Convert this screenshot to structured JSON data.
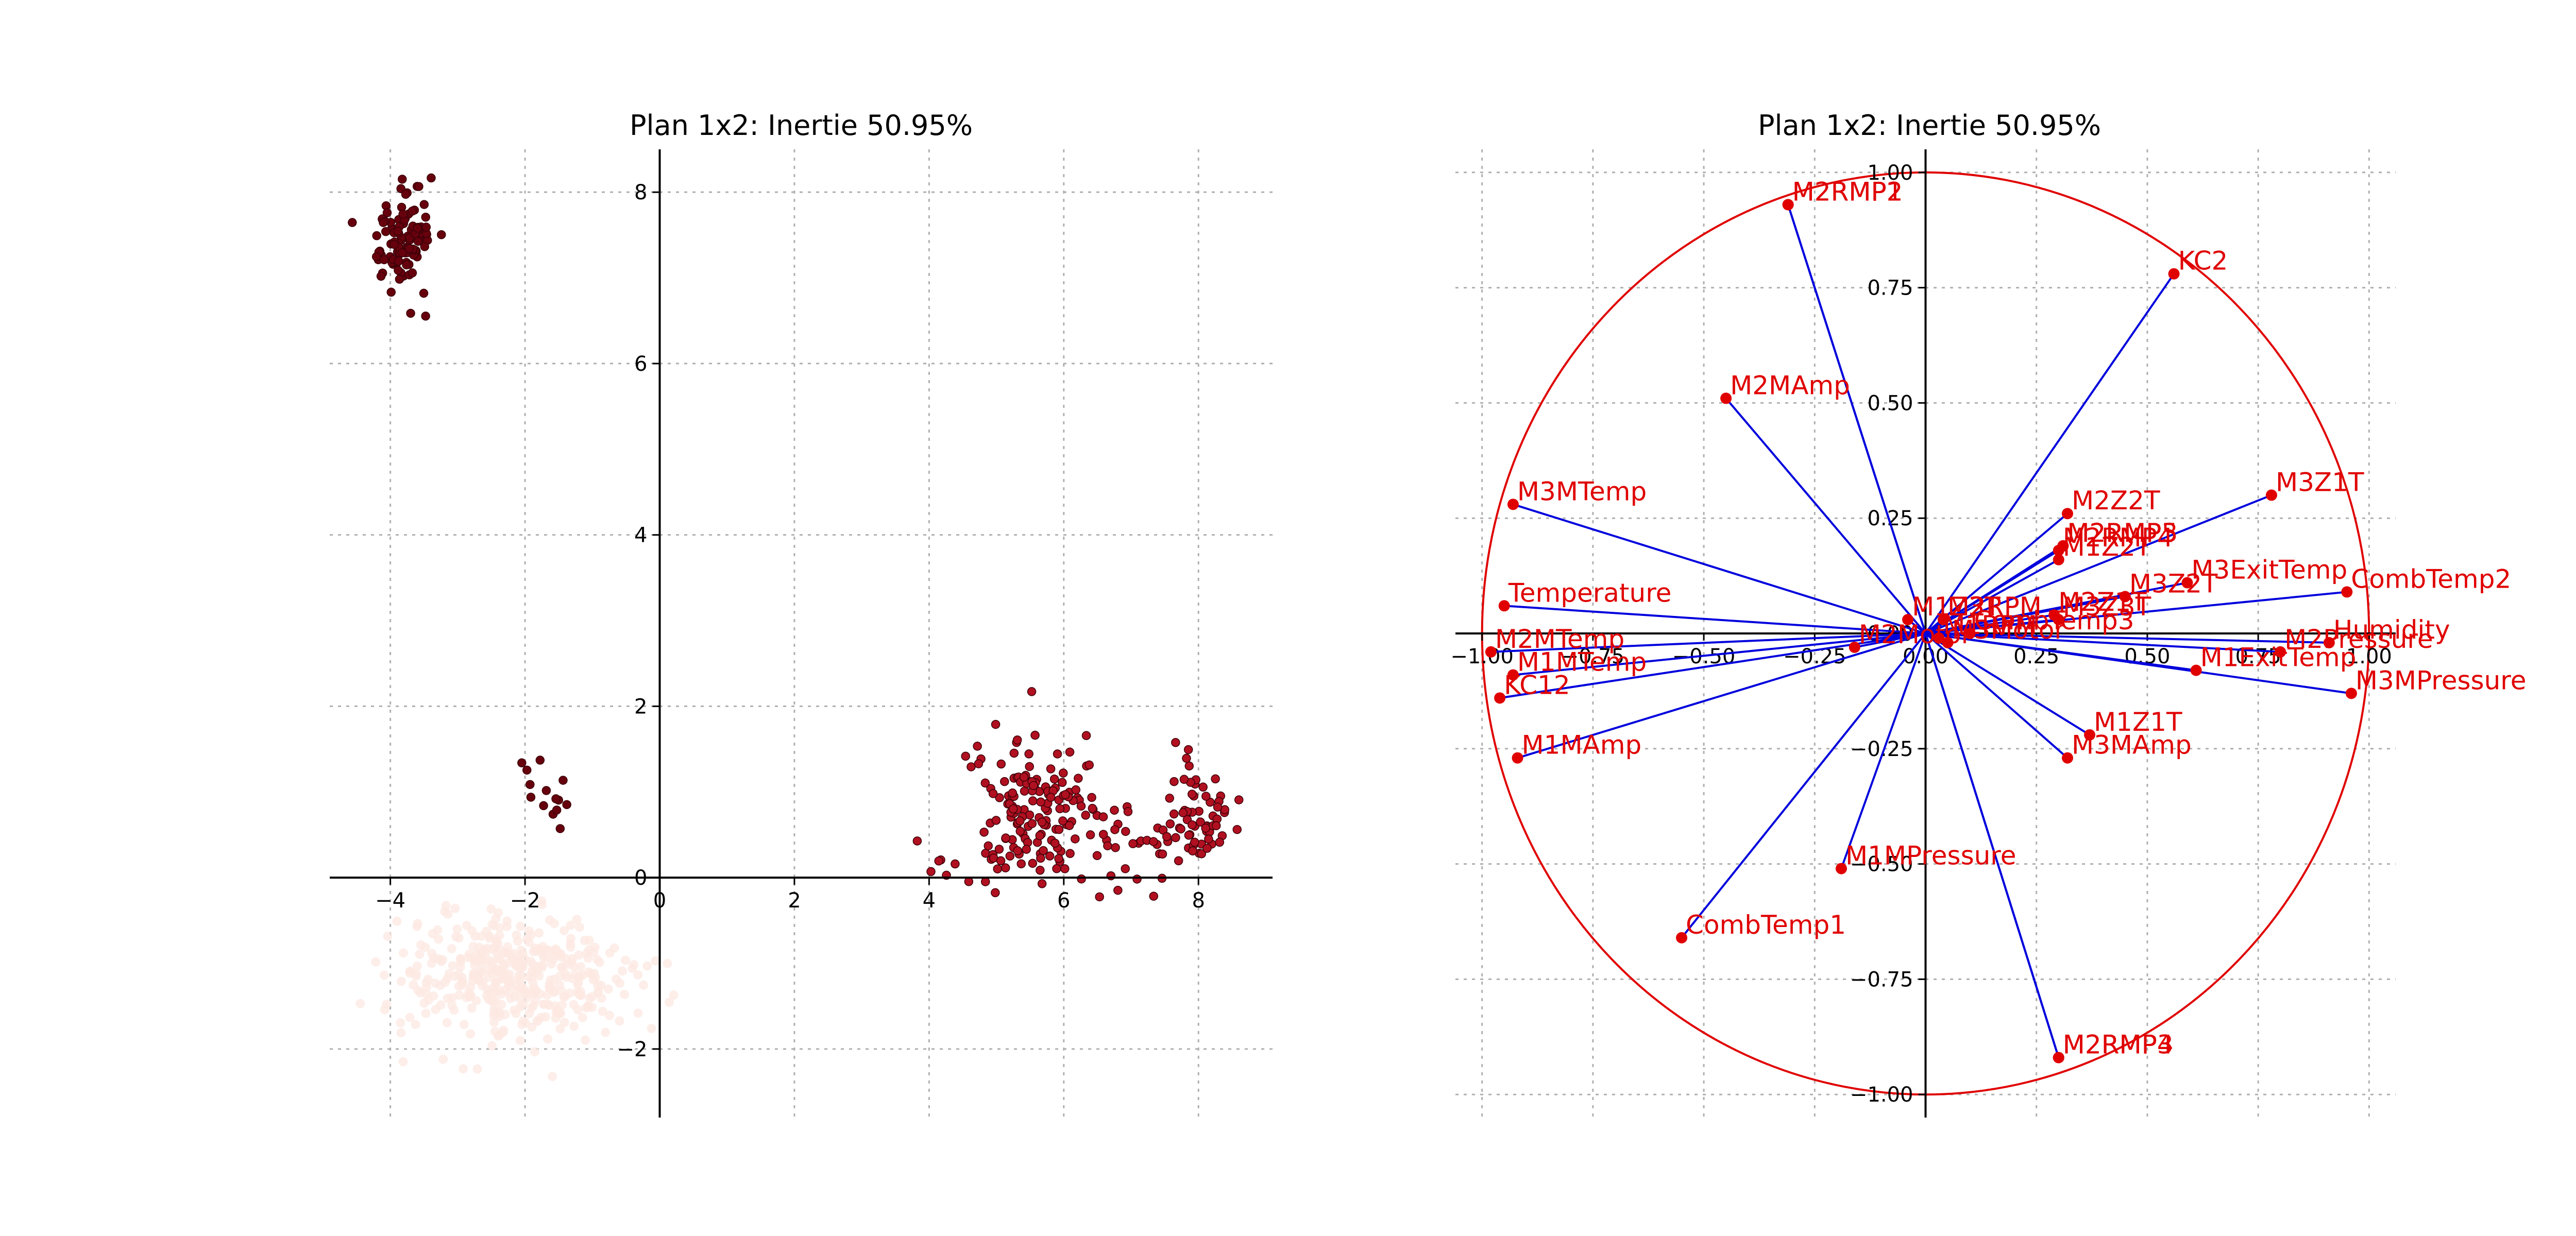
{
  "left_title": "Plan 1x2: Inertie 50.95%",
  "right_title": "Plan 1x2: Inertie 50.95%",
  "chart_data": [
    {
      "type": "scatter",
      "title": "Plan 1x2: Inertie 50.95%",
      "xlim": [
        -4.9,
        9.1
      ],
      "ylim": [
        -2.8,
        8.5
      ],
      "xticks": [
        -4,
        -2,
        0,
        2,
        4,
        6,
        8
      ],
      "yticks": [
        -2,
        0,
        2,
        4,
        6,
        8
      ],
      "tick_labels_x": [
        "−4",
        "−2",
        "0",
        "2",
        "4",
        "6",
        "8"
      ],
      "tick_labels_y": [
        "−2",
        "0",
        "2",
        "4",
        "6",
        "8"
      ],
      "grid": true,
      "clusters": [
        {
          "color": "#fce8e2",
          "center": [
            -2.2,
            -1.15
          ],
          "spread": [
            0.85,
            0.35
          ],
          "count": 420
        },
        {
          "color": "#67000d",
          "center": [
            -3.8,
            7.45
          ],
          "spread": [
            0.22,
            0.28
          ],
          "count": 110
        },
        {
          "color": "#67000d",
          "center": [
            -1.75,
            1.0
          ],
          "spread": [
            0.25,
            0.25
          ],
          "count": 14
        },
        {
          "color": "#b01020",
          "center": [
            5.5,
            0.85
          ],
          "spread": [
            0.45,
            0.45
          ],
          "count": 150
        },
        {
          "color": "#b01020",
          "center": [
            6.8,
            0.35
          ],
          "spread": [
            0.45,
            0.3
          ],
          "count": 40
        },
        {
          "color": "#b01020",
          "center": [
            8.0,
            0.7
          ],
          "spread": [
            0.25,
            0.35
          ],
          "count": 60
        },
        {
          "color": "#b01020",
          "center": [
            4.1,
            0.1
          ],
          "spread": [
            0.2,
            0.2
          ],
          "count": 5
        }
      ]
    },
    {
      "type": "scatter",
      "title": "Plan 1x2: Inertie 50.95%",
      "xlim": [
        -1.06,
        1.06
      ],
      "ylim": [
        -1.05,
        1.05
      ],
      "xticks": [
        -1.0,
        -0.75,
        -0.5,
        -0.25,
        0.0,
        0.25,
        0.5,
        0.75,
        1.0
      ],
      "yticks": [
        -1.0,
        -0.75,
        -0.5,
        -0.25,
        0.0,
        0.25,
        0.5,
        0.75,
        1.0
      ],
      "tick_labels_x": [
        "−1.00",
        "−0.75",
        "−0.50",
        "−0.25",
        "0.00",
        "0.25",
        "0.50",
        "0.75",
        "1.00"
      ],
      "tick_labels_y": [
        "−1.00",
        "−0.75",
        "−0.50",
        "−0.25",
        "0.00",
        "0.25",
        "0.50",
        "0.75",
        "1.00"
      ],
      "grid": true,
      "unit_circle": true,
      "vectors": [
        {
          "name": "M2RMP1",
          "x": -0.31,
          "y": 0.93
        },
        {
          "name": "M2RMP2",
          "x": -0.31,
          "y": 0.93
        },
        {
          "name": "KC2",
          "x": 0.56,
          "y": 0.78
        },
        {
          "name": "M2MAmp",
          "x": -0.45,
          "y": 0.51
        },
        {
          "name": "M3MTemp",
          "x": -0.93,
          "y": 0.28
        },
        {
          "name": "M3Z1T",
          "x": 0.78,
          "y": 0.3
        },
        {
          "name": "M2Z2T",
          "x": 0.32,
          "y": 0.26
        },
        {
          "name": "M2RMP5",
          "x": 0.31,
          "y": 0.19
        },
        {
          "name": "M2RMP3",
          "x": 0.31,
          "y": 0.19
        },
        {
          "name": "M2RMP4",
          "x": 0.3,
          "y": 0.18
        },
        {
          "name": "M1Z2T",
          "x": 0.3,
          "y": 0.16
        },
        {
          "name": "M3ExitTemp",
          "x": 0.59,
          "y": 0.11
        },
        {
          "name": "CombTemp2",
          "x": 0.95,
          "y": 0.09
        },
        {
          "name": "M3Z2T",
          "x": 0.45,
          "y": 0.08
        },
        {
          "name": "Temperature",
          "x": -0.95,
          "y": 0.06
        },
        {
          "name": "M2Z1T",
          "x": 0.29,
          "y": 0.04
        },
        {
          "name": "M3Z3T",
          "x": 0.3,
          "y": 0.03
        },
        {
          "name": "M1Z3T",
          "x": -0.04,
          "y": 0.03
        },
        {
          "name": "M2RPM",
          "x": 0.04,
          "y": 0.03
        },
        {
          "name": "CombTemp3",
          "x": 0.1,
          "y": 0.0
        },
        {
          "name": "M1RPM",
          "x": 0.03,
          "y": -0.01
        },
        {
          "name": "M3Motor",
          "x": 0.05,
          "y": -0.02
        },
        {
          "name": "M2Motor",
          "x": -0.16,
          "y": -0.03
        },
        {
          "name": "M2MTemp",
          "x": -0.98,
          "y": -0.04
        },
        {
          "name": "Humidity",
          "x": 0.91,
          "y": -0.02
        },
        {
          "name": "M2Pressure",
          "x": 0.8,
          "y": -0.04
        },
        {
          "name": "M1MTemp",
          "x": -0.93,
          "y": -0.09
        },
        {
          "name": "M1ExitTemp",
          "x": 0.61,
          "y": -0.08
        },
        {
          "name": "M3MPressure",
          "x": 0.96,
          "y": -0.13
        },
        {
          "name": "KC12",
          "x": -0.96,
          "y": -0.14
        },
        {
          "name": "M1Z1T",
          "x": 0.37,
          "y": -0.22
        },
        {
          "name": "M3MAmp",
          "x": 0.32,
          "y": -0.27
        },
        {
          "name": "M1MAmp",
          "x": -0.92,
          "y": -0.27
        },
        {
          "name": "M1MPressure",
          "x": -0.19,
          "y": -0.51
        },
        {
          "name": "CombTemp1",
          "x": -0.55,
          "y": -0.66
        },
        {
          "name": "M2RMP3b",
          "label": "M2RMP3",
          "x": 0.3,
          "y": -0.92
        },
        {
          "name": "M2RMP4b",
          "label": "M2RMP4",
          "x": 0.3,
          "y": -0.92
        }
      ]
    }
  ]
}
